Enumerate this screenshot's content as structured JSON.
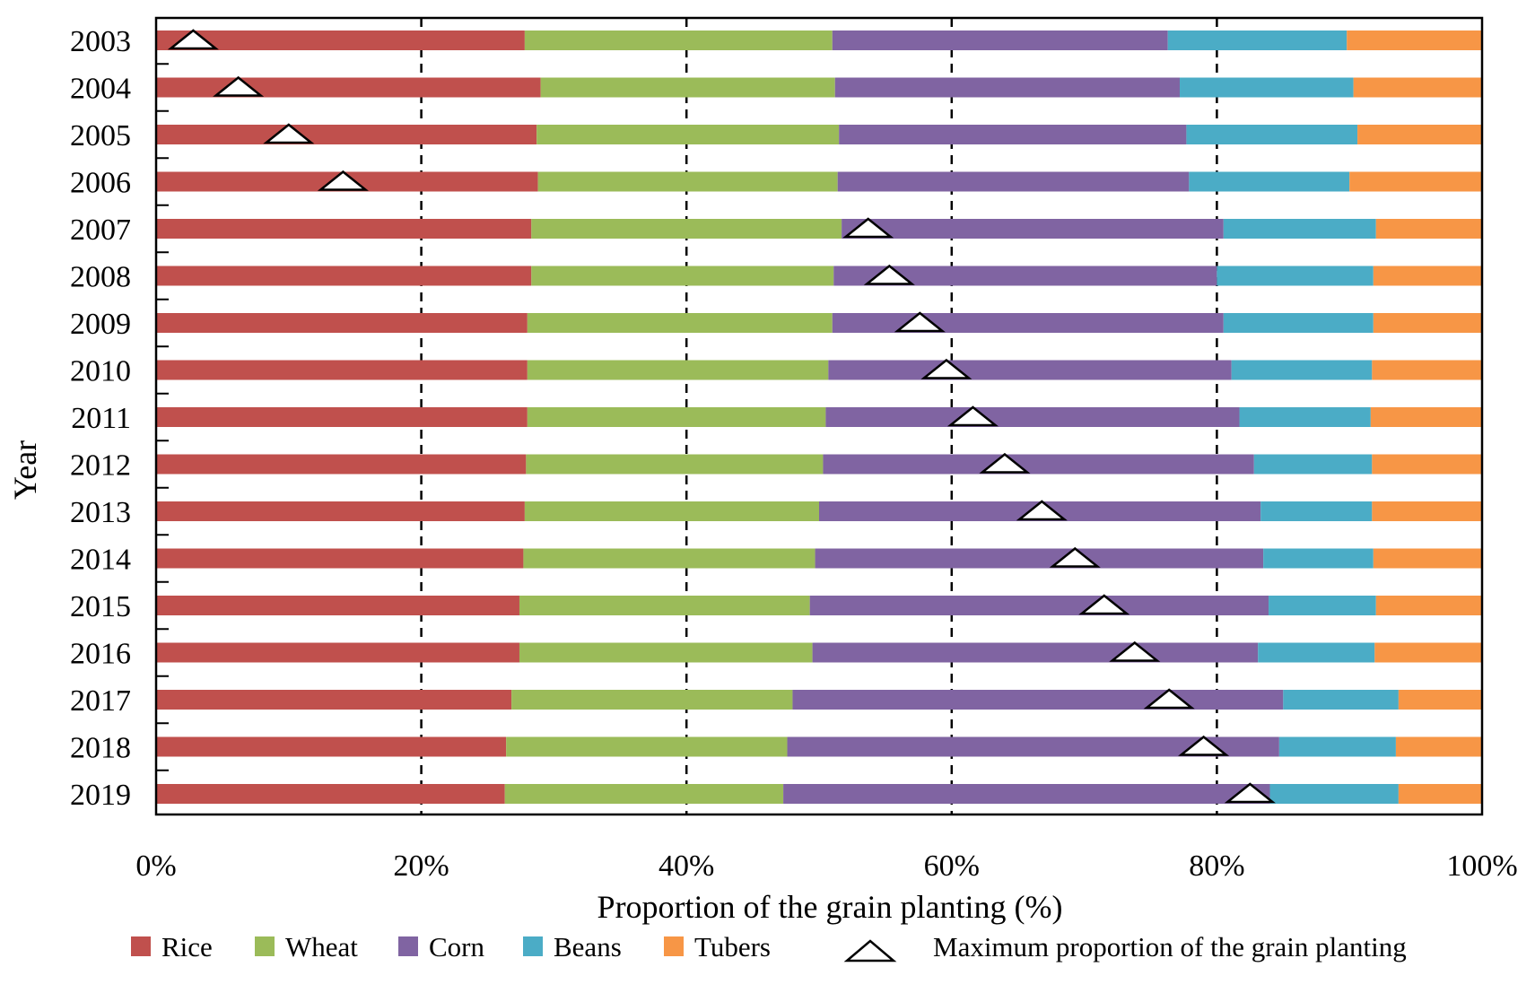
{
  "chart_data": {
    "type": "bar",
    "orientation": "horizontal",
    "stacked": true,
    "title": "",
    "xlabel": "Proportion of the grain planting (%)",
    "ylabel": "Year",
    "xlim": [
      0,
      100
    ],
    "xticks": [
      0,
      20,
      40,
      60,
      80,
      100
    ],
    "xtick_labels": [
      "0%",
      "20%",
      "40%",
      "60%",
      "80%",
      "100%"
    ],
    "grid": "vertical dashed lines at 20%, 40%, 60%, 80%",
    "legend_position": "bottom",
    "categories": [
      "2003",
      "2004",
      "2005",
      "2006",
      "2007",
      "2008",
      "2009",
      "2010",
      "2011",
      "2012",
      "2013",
      "2014",
      "2015",
      "2016",
      "2017",
      "2018",
      "2019"
    ],
    "series": [
      {
        "name": "Rice",
        "color": "#c0504d",
        "values": [
          27.8,
          29.0,
          28.7,
          28.8,
          28.3,
          28.3,
          28.0,
          28.0,
          28.0,
          27.9,
          27.8,
          27.7,
          27.4,
          27.4,
          26.8,
          26.4,
          26.3
        ]
      },
      {
        "name": "Wheat",
        "color": "#9bbb59",
        "values": [
          23.2,
          22.2,
          22.8,
          22.6,
          23.4,
          22.8,
          23.0,
          22.7,
          22.5,
          22.4,
          22.2,
          22.0,
          21.9,
          22.1,
          21.2,
          21.2,
          21.0
        ]
      },
      {
        "name": "Corn",
        "color": "#8064a2",
        "values": [
          25.3,
          26.0,
          26.2,
          26.5,
          28.8,
          28.9,
          29.5,
          30.4,
          31.2,
          32.5,
          33.3,
          33.8,
          34.6,
          33.6,
          37.0,
          37.1,
          36.7
        ]
      },
      {
        "name": "Beans",
        "color": "#4bacc6",
        "values": [
          13.5,
          13.1,
          12.9,
          12.1,
          11.5,
          11.8,
          11.3,
          10.6,
          9.9,
          8.9,
          8.4,
          8.3,
          8.1,
          8.8,
          8.7,
          8.8,
          9.7
        ]
      },
      {
        "name": "Tubers",
        "color": "#f79646",
        "values": [
          10.2,
          9.7,
          9.4,
          10.0,
          8.0,
          8.2,
          8.2,
          8.3,
          8.4,
          8.3,
          8.3,
          8.2,
          8.0,
          8.1,
          6.3,
          6.5,
          6.3
        ]
      }
    ],
    "markers": {
      "name": "Maximum proportion of the grain planting",
      "shape": "triangle",
      "values": [
        2.8,
        6.2,
        10.0,
        14.1,
        53.7,
        55.3,
        57.6,
        59.6,
        61.6,
        64.0,
        66.8,
        69.3,
        71.5,
        73.8,
        76.4,
        79.0,
        82.5
      ]
    }
  }
}
